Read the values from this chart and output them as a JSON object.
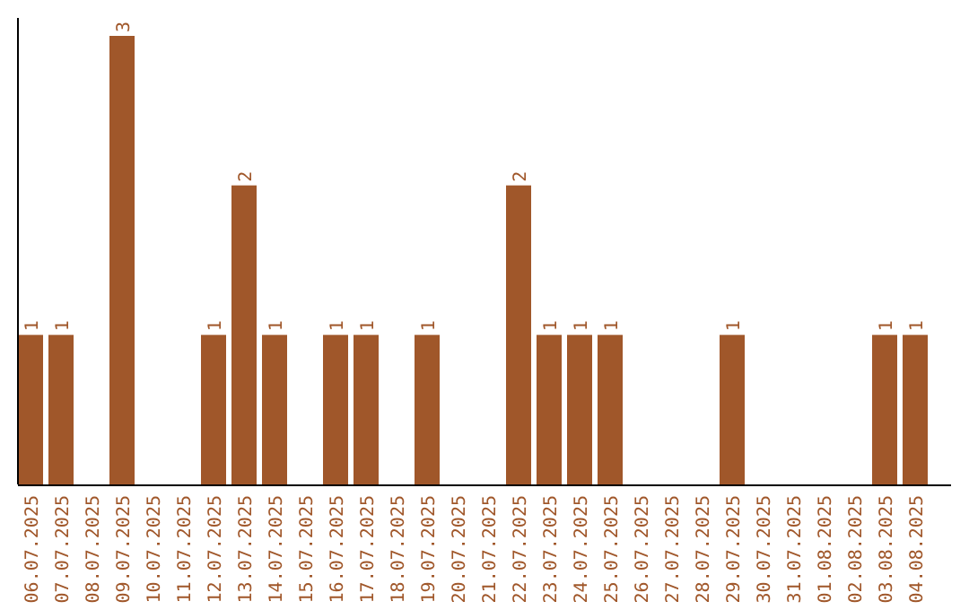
{
  "chart_data": {
    "type": "bar",
    "categories": [
      "06.07.2025",
      "07.07.2025",
      "08.07.2025",
      "09.07.2025",
      "10.07.2025",
      "11.07.2025",
      "12.07.2025",
      "13.07.2025",
      "14.07.2025",
      "15.07.2025",
      "16.07.2025",
      "17.07.2025",
      "18.07.2025",
      "19.07.2025",
      "20.07.2025",
      "21.07.2025",
      "22.07.2025",
      "23.07.2025",
      "24.07.2025",
      "25.07.2025",
      "26.07.2025",
      "27.07.2025",
      "28.07.2025",
      "29.07.2025",
      "30.07.2025",
      "31.07.2025",
      "01.08.2025",
      "02.08.2025",
      "03.08.2025",
      "04.08.2025"
    ],
    "values": [
      1,
      1,
      0,
      3,
      0,
      0,
      1,
      2,
      1,
      0,
      1,
      1,
      0,
      1,
      0,
      0,
      2,
      1,
      1,
      1,
      0,
      0,
      0,
      1,
      0,
      0,
      0,
      0,
      1,
      1
    ],
    "value_labels": [
      "1",
      "1",
      null,
      "3",
      null,
      null,
      "1",
      "2",
      "1",
      null,
      "1",
      "1",
      null,
      "1",
      null,
      null,
      "2",
      "1",
      "1",
      "1",
      null,
      null,
      null,
      "1",
      null,
      null,
      null,
      null,
      "1",
      "1"
    ],
    "color": "#a0572a",
    "tick_labels": "x"
  }
}
